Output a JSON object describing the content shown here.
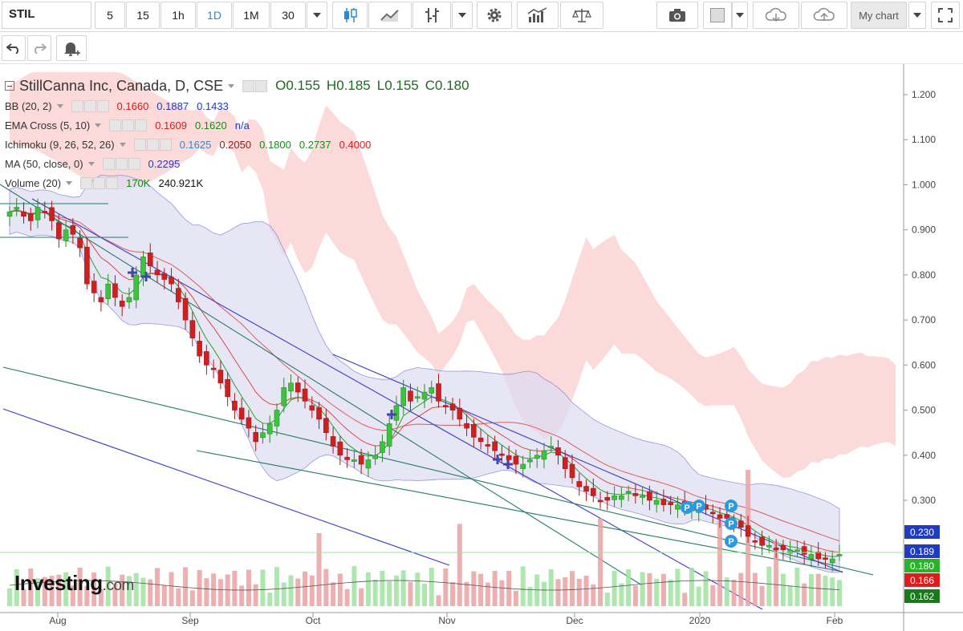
{
  "toolbar": {
    "symbol": "STIL",
    "intervals": [
      "5",
      "15",
      "1h",
      "1D",
      "1M",
      "30"
    ],
    "active_interval": "1D",
    "my_chart_label": "My chart"
  },
  "legend": {
    "title": "StillCanna Inc, Canada, D, CSE",
    "ohlc": {
      "o_label": "O",
      "o": "0.155",
      "h_label": "H",
      "h": "0.185",
      "l_label": "L",
      "l": "0.155",
      "c_label": "C",
      "c": "0.180"
    },
    "indicators": [
      {
        "name": "BB (20, 2)",
        "values": [
          {
            "v": "0.1660",
            "color": "#d81b1b"
          },
          {
            "v": "0.1887",
            "color": "#1f3bbf"
          },
          {
            "v": "0.1433",
            "color": "#1f3bbf"
          }
        ]
      },
      {
        "name": "EMA Cross (5, 10)",
        "values": [
          {
            "v": "0.1609",
            "color": "#d81b1b"
          },
          {
            "v": "0.1620",
            "color": "#1a8a1a"
          },
          {
            "v": "n/a",
            "color": "#1f3bbf"
          }
        ]
      },
      {
        "name": "Ichimoku (9, 26, 52, 26)",
        "values": [
          {
            "v": "0.1625",
            "color": "#2a8ad4"
          },
          {
            "v": "0.2050",
            "color": "#8b1a1a"
          },
          {
            "v": "0.1800",
            "color": "#1a8a1a"
          },
          {
            "v": "0.2737",
            "color": "#1a8a1a"
          },
          {
            "v": "0.4000",
            "color": "#d81b1b"
          }
        ]
      },
      {
        "name": "MA (50, close, 0)",
        "values": [
          {
            "v": "0.2295",
            "color": "#1f3bbf"
          }
        ]
      },
      {
        "name": "Volume (20)",
        "values": [
          {
            "v": "170K",
            "color": "#1a8a1a"
          },
          {
            "v": "240.921K",
            "color": "#111111"
          }
        ]
      }
    ]
  },
  "y_axis": {
    "ticks": [
      "1.200",
      "1.100",
      "1.000",
      "0.900",
      "0.800",
      "0.700",
      "0.600",
      "0.500",
      "0.400",
      "0.300"
    ]
  },
  "x_axis": {
    "ticks": [
      "Aug",
      "Sep",
      "Oct",
      "Nov",
      "Dec",
      "2020",
      "Feb"
    ]
  },
  "price_tags": [
    {
      "value": "0.230",
      "color": "#1f3bbf"
    },
    {
      "value": "0.189",
      "color": "#1f3bbf"
    },
    {
      "value": "0.180",
      "color": "#2ab22a"
    },
    {
      "value": "0.166",
      "color": "#e01b1b"
    },
    {
      "value": "0.162",
      "color": "#1a7a1a"
    }
  ],
  "markers": {
    "p_label": "P"
  },
  "logo": {
    "brand": "Investing",
    "suffix": ".com"
  },
  "colors": {
    "up": "#3cc43c",
    "down": "#d01f1f",
    "cloud": "#fbd3d3",
    "bands": "#dcdcf2"
  },
  "chart_data": {
    "type": "candlestick",
    "y_range": [
      0.17,
      1.25
    ],
    "closes": [
      0.94,
      0.95,
      0.93,
      0.92,
      0.95,
      0.94,
      0.92,
      0.88,
      0.9,
      0.89,
      0.86,
      0.78,
      0.76,
      0.74,
      0.78,
      0.75,
      0.73,
      0.75,
      0.8,
      0.84,
      0.82,
      0.8,
      0.79,
      0.78,
      0.74,
      0.7,
      0.66,
      0.62,
      0.6,
      0.59,
      0.56,
      0.53,
      0.5,
      0.48,
      0.46,
      0.43,
      0.45,
      0.47,
      0.5,
      0.55,
      0.56,
      0.54,
      0.52,
      0.5,
      0.48,
      0.45,
      0.42,
      0.4,
      0.39,
      0.39,
      0.38,
      0.39,
      0.4,
      0.43,
      0.47,
      0.51,
      0.55,
      0.52,
      0.53,
      0.54,
      0.55,
      0.52,
      0.51,
      0.5,
      0.48,
      0.46,
      0.44,
      0.43,
      0.42,
      0.41,
      0.4,
      0.39,
      0.38,
      0.38,
      0.39,
      0.4,
      0.41,
      0.42,
      0.4,
      0.37,
      0.35,
      0.33,
      0.32,
      0.31,
      0.3,
      0.3,
      0.31,
      0.31,
      0.32,
      0.31,
      0.31,
      0.3,
      0.3,
      0.29,
      0.29,
      0.29,
      0.28,
      0.28,
      0.28,
      0.28,
      0.27,
      0.26,
      0.26,
      0.25,
      0.24,
      0.22,
      0.21,
      0.2,
      0.2,
      0.19,
      0.19,
      0.19,
      0.19,
      0.18,
      0.18,
      0.17,
      0.17,
      0.17,
      0.18
    ]
  }
}
